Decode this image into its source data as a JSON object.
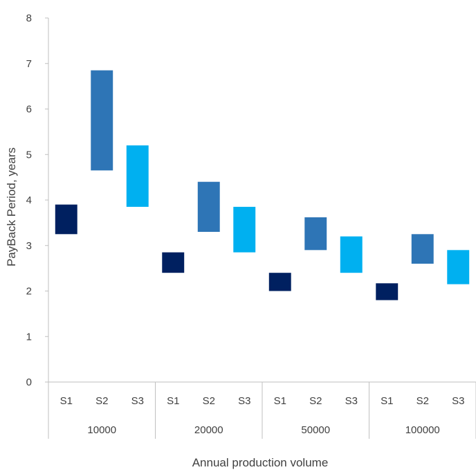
{
  "chart_data": {
    "type": "floating-bar",
    "title": "",
    "xlabel": "Annual production volume",
    "ylabel": "PayBack Period, years",
    "ylim": [
      0,
      8
    ],
    "yticks": [
      0,
      1,
      2,
      3,
      4,
      5,
      6,
      7,
      8
    ],
    "grid": false,
    "legend": "none",
    "colors": {
      "S1": "#002060",
      "S2": "#2E75B6",
      "S3": "#00B0F0"
    },
    "groups": [
      {
        "label": "10000",
        "bars": [
          {
            "label": "S1",
            "low": 3.25,
            "high": 3.9
          },
          {
            "label": "S2",
            "low": 4.65,
            "high": 6.85
          },
          {
            "label": "S3",
            "low": 3.85,
            "high": 5.2
          }
        ]
      },
      {
        "label": "20000",
        "bars": [
          {
            "label": "S1",
            "low": 2.4,
            "high": 2.85
          },
          {
            "label": "S2",
            "low": 3.3,
            "high": 4.4
          },
          {
            "label": "S3",
            "low": 2.85,
            "high": 3.85
          }
        ]
      },
      {
        "label": "50000",
        "bars": [
          {
            "label": "S1",
            "low": 2.0,
            "high": 2.4
          },
          {
            "label": "S2",
            "low": 2.9,
            "high": 3.62
          },
          {
            "label": "S3",
            "low": 2.4,
            "high": 3.2
          }
        ]
      },
      {
        "label": "100000",
        "bars": [
          {
            "label": "S1",
            "low": 1.8,
            "high": 2.17
          },
          {
            "label": "S2",
            "low": 2.6,
            "high": 3.25
          },
          {
            "label": "S3",
            "low": 2.15,
            "high": 2.9
          }
        ]
      }
    ]
  }
}
